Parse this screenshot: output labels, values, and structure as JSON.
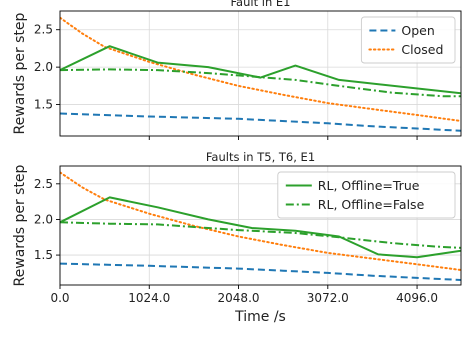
{
  "colors": {
    "open": "#1f77b4",
    "closed": "#ff7f0e",
    "rl": "#2ca02c",
    "grid": "#d9d9d9",
    "axis": "#000000"
  },
  "chart_data": [
    {
      "type": "line",
      "title": "Fault in E1",
      "xlabel": "",
      "ylabel": "Rewards per step",
      "xlim": [
        0,
        4600
      ],
      "ylim": [
        1.08,
        2.75
      ],
      "yticks": [
        1.5,
        2.0,
        2.5
      ],
      "xticks": [
        1024,
        2048,
        3072,
        4096
      ],
      "show_xtick_labels": false,
      "grid": true,
      "legend": {
        "placement": "top-right",
        "entries": [
          "Open",
          "Closed"
        ]
      },
      "series": [
        {
          "name": "Open",
          "style": "dashed",
          "color_key": "open",
          "x": [
            0,
            1024,
            2048,
            3072,
            3584,
            4096,
            4600
          ],
          "y": [
            1.38,
            1.34,
            1.31,
            1.25,
            1.21,
            1.18,
            1.15
          ]
        },
        {
          "name": "Closed",
          "style": "dotted",
          "color_key": "closed",
          "x": [
            0,
            256,
            512,
            1024,
            1536,
            2048,
            2560,
            3072,
            3584,
            4096,
            4600
          ],
          "y": [
            2.66,
            2.45,
            2.27,
            2.07,
            1.9,
            1.75,
            1.63,
            1.52,
            1.44,
            1.36,
            1.28
          ]
        },
        {
          "name": "RL, Offline=True",
          "style": "solid",
          "color_key": "rl",
          "x": [
            0,
            570,
            1120,
            1700,
            2300,
            2700,
            3200,
            4600
          ],
          "y": [
            1.96,
            2.28,
            2.06,
            2.0,
            1.86,
            2.02,
            1.83,
            1.65
          ]
        },
        {
          "name": "RL, Offline=False",
          "style": "dashdot",
          "color_key": "rl",
          "x": [
            0,
            570,
            1120,
            1700,
            2048,
            2700,
            3200,
            3800,
            4400,
            4600
          ],
          "y": [
            1.96,
            1.97,
            1.96,
            1.92,
            1.89,
            1.83,
            1.75,
            1.66,
            1.61,
            1.61
          ]
        }
      ]
    },
    {
      "type": "line",
      "title": "Faults in T5, T6, E1",
      "xlabel": "Time /s",
      "ylabel": "Rewards per step",
      "xlim": [
        0,
        4600
      ],
      "ylim": [
        1.08,
        2.75
      ],
      "yticks": [
        1.5,
        2.0,
        2.5
      ],
      "xticks": [
        0,
        1024,
        2048,
        3072,
        4096
      ],
      "xtick_labels": [
        "0.0",
        "1024.0",
        "2048.0",
        "3072.0",
        "4096.0"
      ],
      "grid": true,
      "legend": {
        "placement": "top-right",
        "entries": [
          "RL, Offline=True",
          "RL, Offline=False"
        ]
      },
      "series": [
        {
          "name": "Open",
          "style": "dashed",
          "color_key": "open",
          "x": [
            0,
            1024,
            2048,
            2560,
            3072,
            3584,
            4096,
            4600
          ],
          "y": [
            1.38,
            1.35,
            1.31,
            1.28,
            1.25,
            1.21,
            1.18,
            1.15
          ]
        },
        {
          "name": "Closed",
          "style": "dotted",
          "color_key": "closed",
          "x": [
            0,
            256,
            512,
            1024,
            1536,
            2048,
            2560,
            3072,
            3584,
            4096,
            4600
          ],
          "y": [
            2.66,
            2.45,
            2.28,
            2.08,
            1.91,
            1.76,
            1.64,
            1.53,
            1.45,
            1.37,
            1.29
          ]
        },
        {
          "name": "RL, Offline=True",
          "style": "solid",
          "color_key": "rl",
          "x": [
            0,
            570,
            1120,
            1700,
            2200,
            2700,
            3200,
            3650,
            4096,
            4600
          ],
          "y": [
            1.96,
            2.31,
            2.17,
            2.0,
            1.88,
            1.84,
            1.76,
            1.51,
            1.47,
            1.56
          ]
        },
        {
          "name": "RL, Offline=False",
          "style": "dashdot",
          "color_key": "rl",
          "x": [
            0,
            570,
            1120,
            1700,
            2048,
            2700,
            3200,
            3800,
            4300,
            4600
          ],
          "y": [
            1.96,
            1.94,
            1.93,
            1.88,
            1.85,
            1.81,
            1.75,
            1.67,
            1.62,
            1.6
          ]
        }
      ]
    }
  ]
}
